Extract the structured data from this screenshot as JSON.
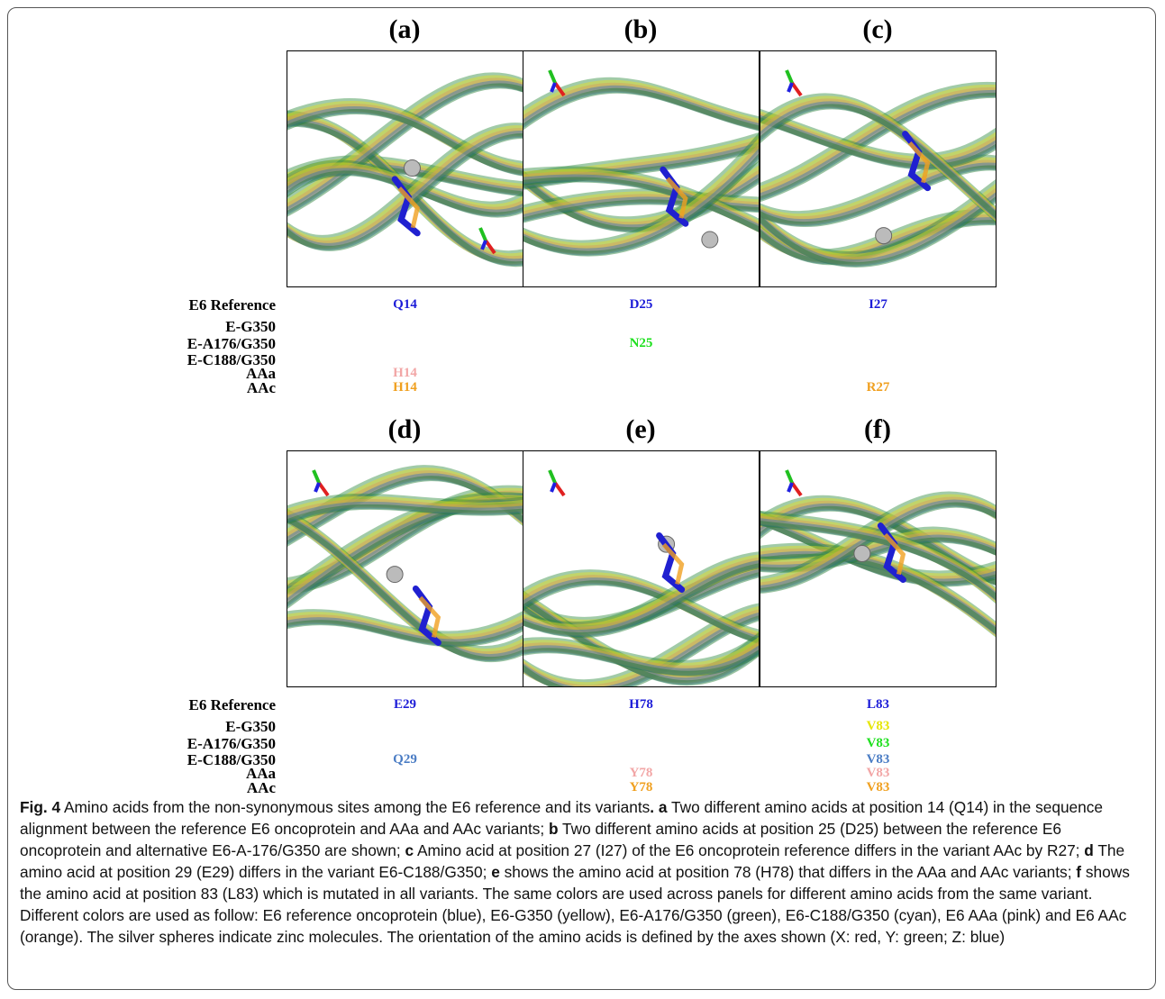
{
  "figure": {
    "row_labels": [
      "E6 Reference",
      "E-G350",
      "E-A176/G350",
      "E-C188/G350",
      "AAa",
      "AAc"
    ],
    "row_colors": [
      "#1c1cd8",
      "#e6e600",
      "#1ee01e",
      "#4a7cc4",
      "#f2a6a6",
      "#f0a020"
    ],
    "groups": [
      {
        "panels": [
          {
            "label": "(a)",
            "residues": [
              "Q14",
              null,
              null,
              null,
              "H14",
              "H14"
            ]
          },
          {
            "label": "(b)",
            "residues": [
              "D25",
              null,
              "N25",
              null,
              null,
              null
            ]
          },
          {
            "label": "(c)",
            "residues": [
              "I27",
              null,
              null,
              null,
              null,
              "R27"
            ]
          }
        ]
      },
      {
        "panels": [
          {
            "label": "(d)",
            "residues": [
              "E29",
              null,
              null,
              "Q29",
              null,
              null
            ]
          },
          {
            "label": "(e)",
            "residues": [
              "H78",
              null,
              null,
              null,
              "Y78",
              "Y78"
            ]
          },
          {
            "label": "(f)",
            "residues": [
              "L83",
              "V83",
              "V83",
              "V83",
              "V83",
              "V83"
            ]
          }
        ]
      }
    ],
    "caption": [
      {
        "text": "Fig. 4",
        "bold": true
      },
      {
        "text": " Amino acids from the non-synonymous sites among the E6 reference and its variants",
        "bold": false
      },
      {
        "text": ". a",
        "bold": true
      },
      {
        "text": " Two different amino acids at position 14 (Q14) in the sequence alignment between the reference E6 oncoprotein and AAa and AAc variants; ",
        "bold": false
      },
      {
        "text": "b",
        "bold": true
      },
      {
        "text": " Two different amino acids at position 25 (D25) between the reference E6 oncoprotein and alternative E6-A-176/G350 are shown; ",
        "bold": false
      },
      {
        "text": "c",
        "bold": true
      },
      {
        "text": " Amino acid at position 27 (I27) of the E6 oncoprotein reference differs in the variant AAc by R27; ",
        "bold": false
      },
      {
        "text": "d",
        "bold": true
      },
      {
        "text": " The amino acid at position 29 (E29) differs in the variant E6-C188/G350; ",
        "bold": false
      },
      {
        "text": "e",
        "bold": true
      },
      {
        "text": " shows the amino acid at position 78 (H78) that differs in the AAa and AAc variants; ",
        "bold": false
      },
      {
        "text": "f",
        "bold": true
      },
      {
        "text": " shows the amino acid at position 83 (L83) which is mutated in all variants. The same colors are used across panels for different amino acids from the same variant. Different colors are used as follow: E6 reference oncoprotein (blue), E6-G350 (yellow), E6-A176/G350 (green), E6-C188/G350 (cyan), E6 AAa (pink) and E6 AAc (orange). The silver spheres indicate zinc molecules. The orientation of the amino acids is defined by the axes shown (X: red, Y: green; Z: blue)",
        "bold": false
      }
    ]
  }
}
